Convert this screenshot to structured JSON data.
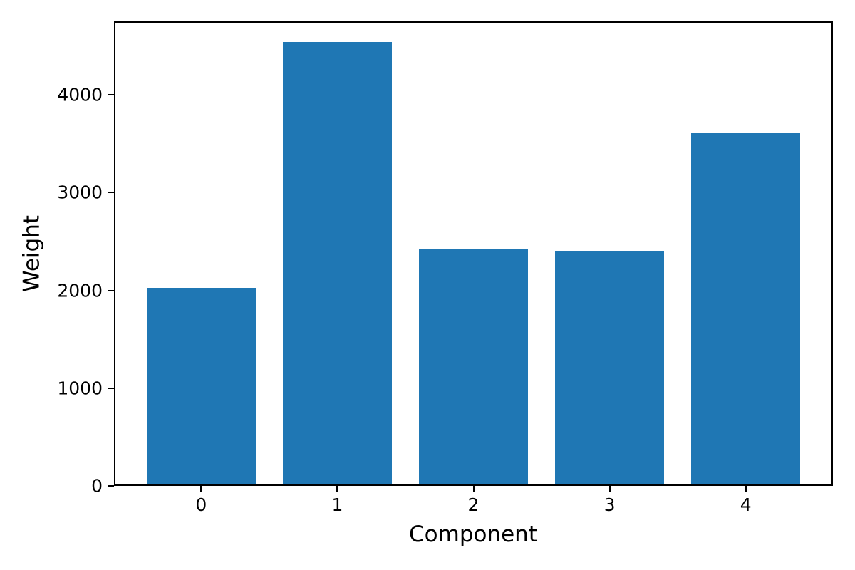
{
  "chart_data": {
    "type": "bar",
    "title": "",
    "xlabel": "Component",
    "ylabel": "Weight",
    "categories": [
      "0",
      "1",
      "2",
      "3",
      "4"
    ],
    "values": [
      2010,
      4525,
      2415,
      2390,
      3590
    ],
    "yticks": [
      0,
      1000,
      2000,
      3000,
      4000
    ],
    "ylim": [
      0,
      4751
    ],
    "xlim": [
      -0.64,
      4.64
    ],
    "bar_width_units": 0.8,
    "bar_color": "#1f77b4",
    "axis_color": "#000000",
    "text_color": "#000000",
    "background_color": "#ffffff",
    "grid": false,
    "legend": null
  }
}
